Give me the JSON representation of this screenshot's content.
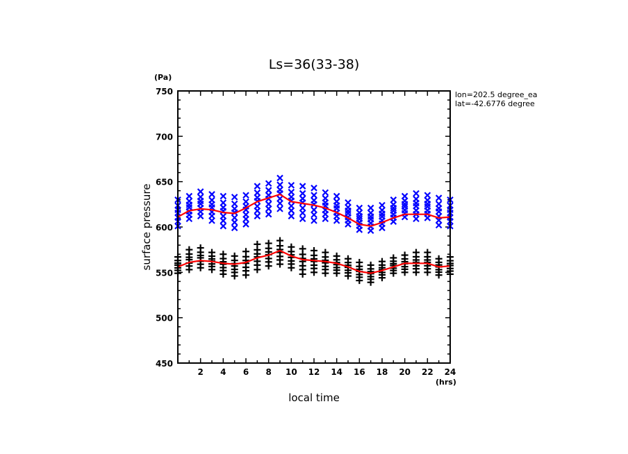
{
  "chart_data": {
    "type": "scatter",
    "title": "Ls=36(33-38)",
    "xlabel": "local time",
    "ylabel": "surface pressure",
    "x_unit": "(hrs)",
    "y_unit": "(Pa)",
    "xlim": [
      0,
      24
    ],
    "ylim": [
      450,
      750
    ],
    "x_ticks": [
      2,
      4,
      6,
      8,
      10,
      12,
      14,
      16,
      18,
      20,
      22,
      24
    ],
    "x_tick_labels": [
      "2",
      "4",
      "6",
      "8",
      "10",
      "12",
      "14",
      "16",
      "18",
      "20",
      "22",
      "24"
    ],
    "x_minor_step": 1,
    "y_ticks": [
      450,
      500,
      550,
      600,
      650,
      700,
      750
    ],
    "y_tick_labels": [
      "450",
      "500",
      "550",
      "600",
      "650",
      "700",
      "750"
    ],
    "y_minor_step": 10,
    "grid": false,
    "annotations": [
      "lon=202.5 degree_ea",
      "lat=-42.6776 degree"
    ],
    "x": [
      0,
      1,
      2,
      3,
      4,
      5,
      6,
      7,
      8,
      9,
      10,
      11,
      12,
      13,
      14,
      15,
      16,
      17,
      18,
      19,
      20,
      21,
      22,
      23,
      24
    ],
    "series": [
      {
        "name": "blue-points",
        "marker": "x",
        "color": "#0000ff",
        "ranges": [
          [
            601,
            630
          ],
          [
            609,
            634
          ],
          [
            612,
            639
          ],
          [
            607,
            636
          ],
          [
            601,
            634
          ],
          [
            599,
            633
          ],
          [
            603,
            635
          ],
          [
            612,
            645
          ],
          [
            614,
            648
          ],
          [
            620,
            654
          ],
          [
            612,
            646
          ],
          [
            609,
            645
          ],
          [
            607,
            643
          ],
          [
            609,
            638
          ],
          [
            607,
            634
          ],
          [
            603,
            627
          ],
          [
            597,
            621
          ],
          [
            596,
            621
          ],
          [
            599,
            624
          ],
          [
            606,
            630
          ],
          [
            611,
            634
          ],
          [
            609,
            637
          ],
          [
            610,
            635
          ],
          [
            602,
            632
          ],
          [
            601,
            630
          ]
        ]
      },
      {
        "name": "blue-mean",
        "type": "line",
        "color": "#ff0000",
        "values": [
          611,
          618,
          620,
          619,
          616,
          615,
          621,
          628,
          632,
          636,
          628,
          626,
          624,
          621,
          616,
          610,
          603,
          601,
          605,
          610,
          614,
          614,
          614,
          610,
          611
        ]
      },
      {
        "name": "black-points",
        "marker": "+",
        "color": "#000000",
        "ranges": [
          [
            549,
            567
          ],
          [
            553,
            575
          ],
          [
            555,
            577
          ],
          [
            553,
            572
          ],
          [
            548,
            570
          ],
          [
            546,
            568
          ],
          [
            547,
            573
          ],
          [
            553,
            581
          ],
          [
            557,
            582
          ],
          [
            559,
            585
          ],
          [
            555,
            578
          ],
          [
            548,
            576
          ],
          [
            550,
            574
          ],
          [
            549,
            572
          ],
          [
            549,
            568
          ],
          [
            546,
            565
          ],
          [
            541,
            561
          ],
          [
            539,
            558
          ],
          [
            544,
            562
          ],
          [
            549,
            566
          ],
          [
            550,
            569
          ],
          [
            550,
            572
          ],
          [
            550,
            572
          ],
          [
            547,
            565
          ],
          [
            548,
            567
          ]
        ]
      },
      {
        "name": "black-mean",
        "type": "line",
        "color": "#ff0000",
        "values": [
          556,
          561,
          563,
          562,
          560,
          559,
          561,
          566,
          569,
          574,
          568,
          564,
          563,
          562,
          560,
          556,
          551,
          549,
          552,
          556,
          560,
          560,
          560,
          556,
          557
        ]
      }
    ]
  }
}
